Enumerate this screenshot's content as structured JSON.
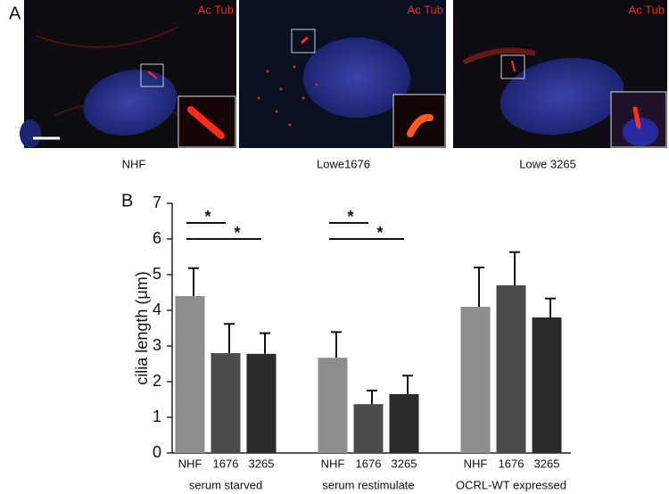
{
  "panels": {
    "label": "A",
    "images": [
      {
        "stain": "Ac Tub",
        "caption": "NHF"
      },
      {
        "stain": "Ac Tub",
        "caption": "Lowe1676"
      },
      {
        "stain": "Ac Tub",
        "caption": "Lowe 3265"
      }
    ]
  },
  "chart_label": "B",
  "chart_data": {
    "type": "bar",
    "y_label": "cilia length (μm)",
    "categories": [
      "serum starved",
      "serum restimulate",
      "OCRL-WT expressed"
    ],
    "series": [
      {
        "name": "NHF",
        "color": "#8e8e8e",
        "values": [
          4.4,
          2.67,
          4.1
        ],
        "errors": [
          0.78,
          0.72,
          1.1
        ]
      },
      {
        "name": "1676",
        "color": "#4b4b4b",
        "values": [
          2.8,
          1.37,
          4.7
        ],
        "errors": [
          0.82,
          0.38,
          0.93
        ]
      },
      {
        "name": "3265",
        "color": "#2a2a2a",
        "values": [
          2.78,
          1.65,
          3.8
        ],
        "errors": [
          0.58,
          0.52,
          0.53
        ]
      }
    ],
    "significance": [
      {
        "label": "*",
        "category": "serum starved",
        "between": [
          "NHF",
          "1676"
        ]
      },
      {
        "label": "*",
        "category": "serum starved",
        "between": [
          "NHF",
          "3265"
        ]
      },
      {
        "label": "*",
        "category": "serum restimulate",
        "between": [
          "NHF",
          "1676"
        ]
      },
      {
        "label": "*",
        "category": "serum restimulate",
        "between": [
          "NHF",
          "3265"
        ]
      }
    ],
    "ylim": [
      0,
      7
    ],
    "yticks": [
      0,
      1,
      2,
      3,
      4,
      5,
      6,
      7
    ]
  }
}
